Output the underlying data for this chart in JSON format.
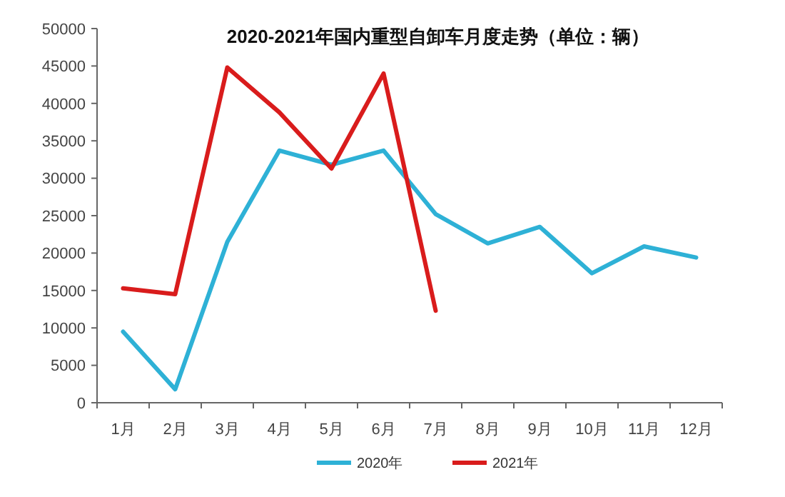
{
  "chart_data": {
    "type": "line",
    "title": "2020-2021年国内重型自卸车月度走势（单位：辆）",
    "categories": [
      "1月",
      "2月",
      "3月",
      "4月",
      "5月",
      "6月",
      "7月",
      "8月",
      "9月",
      "10月",
      "11月",
      "12月"
    ],
    "series": [
      {
        "name": "2020年",
        "color": "#2eb1d6",
        "values": [
          9500,
          1800,
          21500,
          33700,
          31800,
          33700,
          25200,
          21300,
          23500,
          17300,
          20900,
          19400
        ]
      },
      {
        "name": "2021年",
        "color": "#d91c1c",
        "values": [
          15300,
          14500,
          44800,
          38800,
          31300,
          44000,
          12300,
          null,
          null,
          null,
          null,
          null
        ]
      }
    ],
    "ylim": [
      0,
      50000
    ],
    "yticks": [
      0,
      5000,
      10000,
      15000,
      20000,
      25000,
      30000,
      35000,
      40000,
      45000,
      50000
    ],
    "grid": false,
    "legend": "bottom",
    "marker": "none",
    "line_style": "solid"
  }
}
